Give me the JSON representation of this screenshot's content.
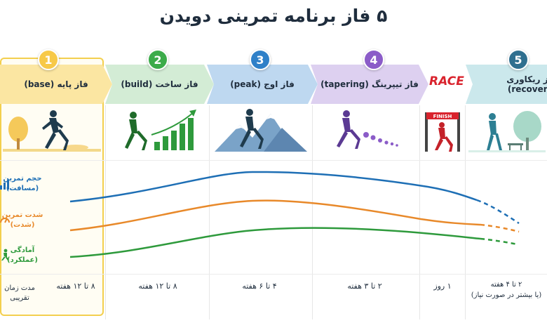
{
  "title": "۵ فاز برنامه تمرینی دویدن",
  "phases": [
    {
      "number": "1",
      "label": "فاز پایه (base)",
      "duration": "۸ تا ۱۲ هفته",
      "color": "#f7c948"
    },
    {
      "number": "2",
      "label": "فاز ساخت (build)",
      "duration": "۸ تا ۱۲ هفته",
      "color": "#3cab4a"
    },
    {
      "number": "3",
      "label": "فاز اوج (peak)",
      "duration": "۴ تا ۶ هفته",
      "color": "#2f80c8"
    },
    {
      "number": "4",
      "label": "فاز تیپرینگ (tapering)",
      "duration": "۲ تا ۳ هفته",
      "color": "#8b5cc8"
    },
    {
      "number": "5",
      "label": "فاز ریکاوری (recovery)",
      "duration_line1": "۲ تا ۴ هفته",
      "duration_line2": "(یا بیشتر در صورت نیاز)",
      "color": "#3aa4b5"
    }
  ],
  "race": {
    "label": "RACE",
    "finish": "FINISH",
    "duration": "۱ روز"
  },
  "rows": {
    "volume": {
      "line1": "حجم تمرین",
      "line2": "(مسافت)",
      "color": "#1e6fb5"
    },
    "intensity": {
      "line1": "شدت تمرین",
      "line2": "(شدت)",
      "color": "#e8892a"
    },
    "fitness": {
      "line1": "آمادگی",
      "line2": "(عملکرد)",
      "color": "#2e9a3c"
    },
    "duration": {
      "line1": "مدت زمان",
      "line2": "تقریبی"
    }
  },
  "icons": {
    "volume": "bar-chart-icon",
    "intensity": "speedometer-icon",
    "fitness": "runner-icon",
    "base": "runner-with-tree-illustration",
    "build": "runner-with-growth-bars-illustration",
    "peak": "runner-with-mountains-illustration",
    "tapering": "runner-with-dots-illustration",
    "race": "runner-crossing-finish-illustration",
    "recovery": "walker-with-tree-bench-illustration"
  }
}
